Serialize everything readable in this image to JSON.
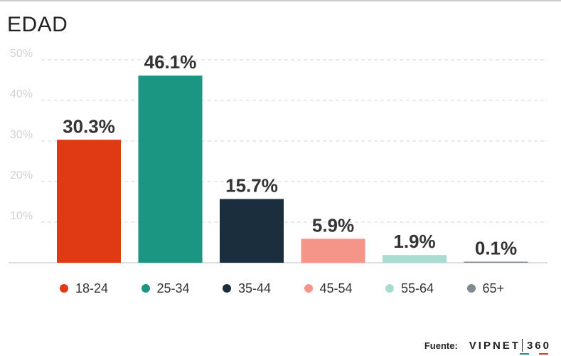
{
  "chart_data": {
    "type": "bar",
    "title": "EDAD",
    "categories": [
      "18-24",
      "25-34",
      "35-44",
      "45-54",
      "55-64",
      "65+"
    ],
    "values": [
      30.3,
      46.1,
      15.7,
      5.9,
      1.9,
      0.1
    ],
    "value_labels": [
      "30.3%",
      "46.1%",
      "15.7%",
      "5.9%",
      "1.9%",
      "0.1%"
    ],
    "colors": [
      "#e03a14",
      "#1a9683",
      "#1a2e3d",
      "#f5958a",
      "#a9dbd2",
      "#808b91"
    ],
    "yticks": [
      10,
      20,
      30,
      40,
      50
    ],
    "ytick_labels": [
      "10%",
      "20%",
      "30%",
      "40%",
      "50%"
    ],
    "ylim": [
      0,
      50
    ],
    "grid": true,
    "legend_position": "bottom"
  },
  "footer": {
    "source_label": "Fuente:",
    "brand_left": "VIPNET",
    "brand_right": "360"
  }
}
